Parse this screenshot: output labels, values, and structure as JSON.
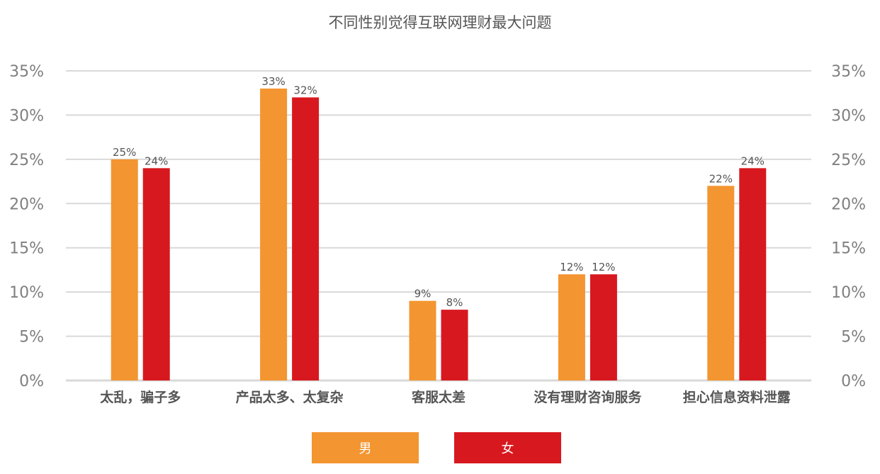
{
  "chart_data": {
    "type": "bar",
    "title": "不同性别觉得互联网理财最大问题",
    "categories": [
      "太乱，骗子多",
      "产品太多、太复杂",
      "客服太差",
      "没有理财咨询服务",
      "担心信息资料泄露"
    ],
    "series": [
      {
        "name": "男",
        "values": [
          25,
          33,
          9,
          12,
          22
        ],
        "labels": [
          "25%",
          "33%",
          "9%",
          "12%",
          "22%"
        ],
        "color": "#f39530"
      },
      {
        "name": "女",
        "values": [
          24,
          32,
          8,
          12,
          24
        ],
        "labels": [
          "24%",
          "32%",
          "8%",
          "12%",
          "24%"
        ],
        "color": "#d7191f"
      }
    ],
    "ylim": [
      0,
      35
    ],
    "yticks": [
      "0%",
      "5%",
      "10%",
      "15%",
      "20%",
      "25%",
      "30%",
      "35%"
    ],
    "secondary_axis": true,
    "grid": true,
    "legend_position": "bottom",
    "colors": {
      "grid": "#d9d9d9",
      "axis_text": "#7f7f7f",
      "category_text": "#555555",
      "label_text": "#555555"
    }
  }
}
